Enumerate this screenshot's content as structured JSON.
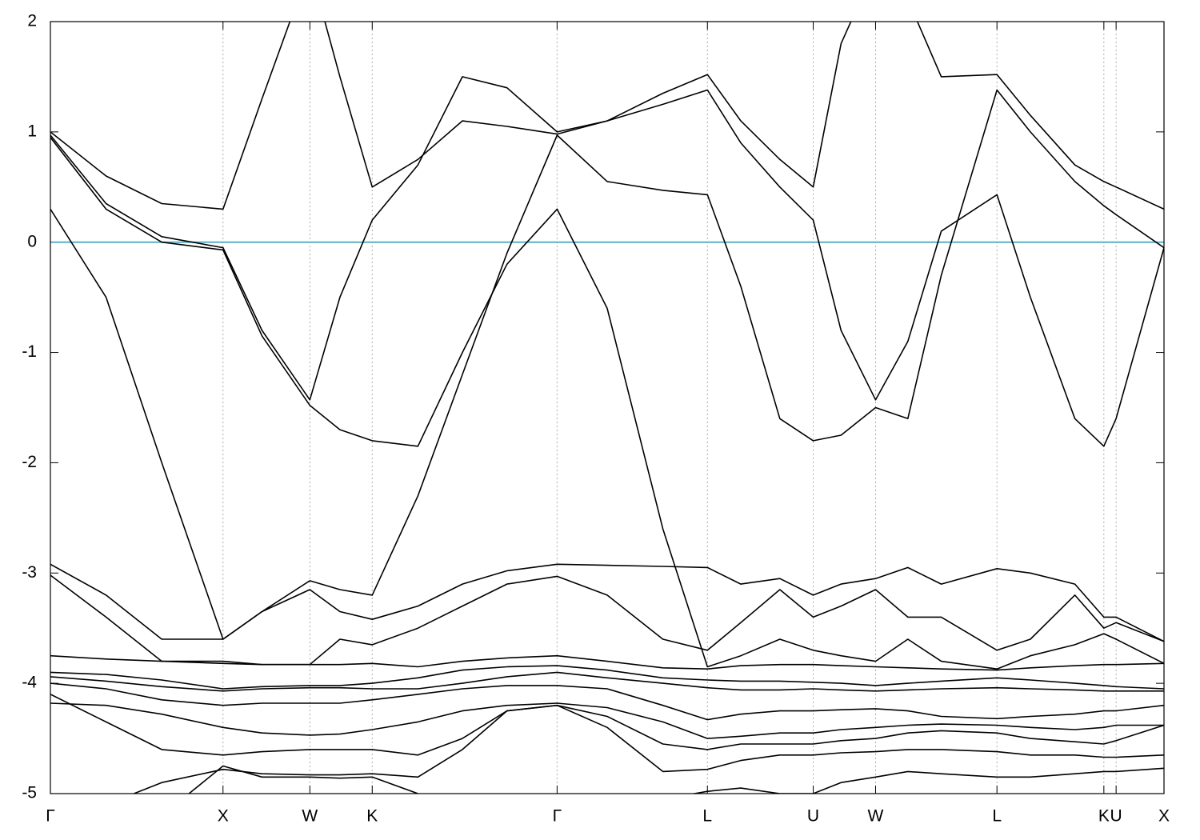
{
  "chart_data": {
    "type": "line",
    "x": [
      0,
      0.05,
      0.1,
      0.155,
      0.19,
      0.233,
      0.26,
      0.289,
      0.33,
      0.37,
      0.41,
      0.455,
      0.5,
      0.55,
      0.59,
      0.62,
      0.655,
      0.685,
      0.71,
      0.741,
      0.77,
      0.8,
      0.85,
      0.88,
      0.92,
      0.946,
      0.957,
      1.0
    ],
    "xlim": [
      0,
      1
    ],
    "xticks": [
      {
        "value": 0,
        "label": "Γ"
      },
      {
        "value": 0.155,
        "label": "X"
      },
      {
        "value": 0.233,
        "label": "W"
      },
      {
        "value": 0.289,
        "label": "K"
      },
      {
        "value": 0.455,
        "label": "Γ"
      },
      {
        "value": 0.59,
        "label": "L"
      },
      {
        "value": 0.685,
        "label": "U"
      },
      {
        "value": 0.741,
        "label": "W"
      },
      {
        "value": 0.85,
        "label": "L"
      },
      {
        "value": 0.946,
        "label": "K"
      },
      {
        "value": 0.957,
        "label": "U"
      },
      {
        "value": 1.0,
        "label": "X"
      }
    ],
    "ylim": [
      -5,
      2
    ],
    "yticks": [
      -5,
      -4,
      -3,
      -2,
      -1,
      0,
      1,
      2
    ],
    "grid": "x",
    "zero_line": {
      "y": 0,
      "color": "#5ab0c8"
    },
    "series": [
      {
        "color": "#000000",
        "values": [
          0.3,
          -0.5,
          -2.0,
          -3.6,
          -3.35,
          -3.07,
          -3.15,
          -3.2,
          -2.3,
          -1.2,
          -0.1,
          0.97,
          0.55,
          0.47,
          0.43,
          -0.4,
          -1.6,
          -1.8,
          -1.75,
          -1.5,
          -1.6,
          -0.3,
          1.38,
          1.0,
          0.55,
          0.33,
          0.25,
          -0.05
        ]
      },
      {
        "color": "#000000",
        "values": [
          1.0,
          0.6,
          0.35,
          0.3,
          1.3,
          2.5,
          1.5,
          0.5,
          0.75,
          1.1,
          1.05,
          0.98,
          1.1,
          1.35,
          1.52,
          1.1,
          0.75,
          0.5,
          1.8,
          2.5,
          2.2,
          1.5,
          1.52,
          1.15,
          0.7,
          0.55,
          0.5,
          0.3
        ]
      },
      {
        "color": "#000000",
        "values": [
          0.97,
          0.35,
          0.05,
          -0.05,
          -0.8,
          -1.43,
          -0.5,
          0.2,
          0.7,
          1.5,
          1.4,
          1.0,
          1.1,
          1.25,
          1.38,
          0.9,
          0.5,
          0.2,
          -0.8,
          -1.43,
          -0.9,
          0.1,
          0.43,
          -0.5,
          -1.6,
          -1.85,
          -1.6,
          -0.05
        ]
      },
      {
        "color": "#000000",
        "values": [
          0.95,
          0.3,
          0.0,
          -0.07,
          -0.85,
          -1.48,
          -1.7,
          -1.8,
          -1.85,
          -1.0,
          -0.2,
          0.3,
          -0.6,
          -2.6,
          -3.85,
          -3.75,
          -3.6,
          -3.7,
          -3.75,
          -3.8,
          -3.6,
          -3.8,
          -3.87,
          -3.75,
          -3.65,
          -3.55,
          -3.6,
          -3.82
        ]
      },
      {
        "color": "#000000",
        "values": [
          -2.92,
          -3.2,
          -3.6,
          -3.6,
          -3.35,
          -3.15,
          -3.35,
          -3.42,
          -3.3,
          -3.1,
          -2.98,
          -2.92,
          -2.93,
          -2.94,
          -2.95,
          -3.1,
          -3.05,
          -3.2,
          -3.1,
          -3.05,
          -2.95,
          -3.1,
          -2.96,
          -3.0,
          -3.1,
          -3.4,
          -3.4,
          -3.62
        ]
      },
      {
        "color": "#000000",
        "values": [
          -3.02,
          -3.4,
          -3.8,
          -3.8,
          -3.83,
          -3.83,
          -3.6,
          -3.65,
          -3.5,
          -3.3,
          -3.1,
          -3.03,
          -3.2,
          -3.6,
          -3.7,
          -3.45,
          -3.15,
          -3.4,
          -3.3,
          -3.15,
          -3.4,
          -3.4,
          -3.7,
          -3.6,
          -3.2,
          -3.5,
          -3.45,
          -3.62
        ]
      },
      {
        "color": "#000000",
        "values": [
          -3.75,
          -3.78,
          -3.8,
          -3.82,
          -3.83,
          -3.83,
          -3.83,
          -3.82,
          -3.85,
          -3.8,
          -3.77,
          -3.75,
          -3.8,
          -3.86,
          -3.87,
          -3.84,
          -3.83,
          -3.83,
          -3.84,
          -3.85,
          -3.86,
          -3.87,
          -3.88,
          -3.86,
          -3.84,
          -3.83,
          -3.83,
          -3.82
        ]
      },
      {
        "color": "#000000",
        "values": [
          -3.9,
          -3.92,
          -3.97,
          -4.05,
          -4.03,
          -4.02,
          -4.02,
          -4.0,
          -3.95,
          -3.88,
          -3.85,
          -3.84,
          -3.88,
          -3.95,
          -3.97,
          -3.98,
          -3.98,
          -3.99,
          -4.0,
          -4.02,
          -4.0,
          -3.98,
          -3.95,
          -3.97,
          -4.0,
          -4.02,
          -4.03,
          -4.05
        ]
      },
      {
        "color": "#000000",
        "values": [
          -3.94,
          -3.98,
          -4.03,
          -4.07,
          -4.05,
          -4.04,
          -4.04,
          -4.05,
          -4.05,
          -4.0,
          -3.94,
          -3.9,
          -3.95,
          -4.0,
          -4.04,
          -4.06,
          -4.06,
          -4.05,
          -4.06,
          -4.07,
          -4.06,
          -4.05,
          -4.04,
          -4.05,
          -4.06,
          -4.07,
          -4.07,
          -4.07
        ]
      },
      {
        "color": "#000000",
        "values": [
          -4.0,
          -4.05,
          -4.15,
          -4.2,
          -4.18,
          -4.18,
          -4.18,
          -4.15,
          -4.1,
          -4.05,
          -4.02,
          -4.02,
          -4.05,
          -4.2,
          -4.33,
          -4.28,
          -4.25,
          -4.25,
          -4.24,
          -4.23,
          -4.25,
          -4.3,
          -4.32,
          -4.3,
          -4.28,
          -4.25,
          -4.25,
          -4.2
        ]
      },
      {
        "color": "#000000",
        "values": [
          -4.18,
          -4.2,
          -4.28,
          -4.4,
          -4.45,
          -4.47,
          -4.46,
          -4.42,
          -4.35,
          -4.25,
          -4.2,
          -4.18,
          -4.22,
          -4.35,
          -4.5,
          -4.48,
          -4.45,
          -4.45,
          -4.42,
          -4.4,
          -4.38,
          -4.37,
          -4.38,
          -4.4,
          -4.42,
          -4.4,
          -4.38,
          -4.38
        ]
      },
      {
        "color": "#000000",
        "values": [
          -4.1,
          -4.35,
          -4.6,
          -4.65,
          -4.62,
          -4.6,
          -4.6,
          -4.6,
          -4.65,
          -4.5,
          -4.25,
          -4.2,
          -4.3,
          -4.55,
          -4.6,
          -4.55,
          -4.55,
          -4.55,
          -4.52,
          -4.5,
          -4.45,
          -4.43,
          -4.45,
          -4.5,
          -4.53,
          -4.55,
          -4.52,
          -4.38
        ]
      },
      {
        "color": "#000000",
        "values": [
          -5.2,
          -5.1,
          -4.9,
          -4.78,
          -4.82,
          -4.83,
          -4.83,
          -4.82,
          -4.85,
          -4.6,
          -4.25,
          -4.2,
          -4.4,
          -4.8,
          -4.78,
          -4.7,
          -4.65,
          -4.65,
          -4.63,
          -4.62,
          -4.6,
          -4.6,
          -4.62,
          -4.65,
          -4.65,
          -4.67,
          -4.67,
          -4.65
        ]
      },
      {
        "color": "#000000",
        "values": [
          -5.5,
          -5.4,
          -5.2,
          -4.75,
          -4.85,
          -4.85,
          -4.86,
          -4.85,
          -5.0,
          -5.3,
          -5.6,
          -5.6,
          -5.4,
          -5.05,
          -4.98,
          -4.95,
          -5.0,
          -5.0,
          -4.9,
          -4.85,
          -4.8,
          -4.82,
          -4.85,
          -4.85,
          -4.82,
          -4.8,
          -4.8,
          -4.77
        ]
      }
    ]
  }
}
